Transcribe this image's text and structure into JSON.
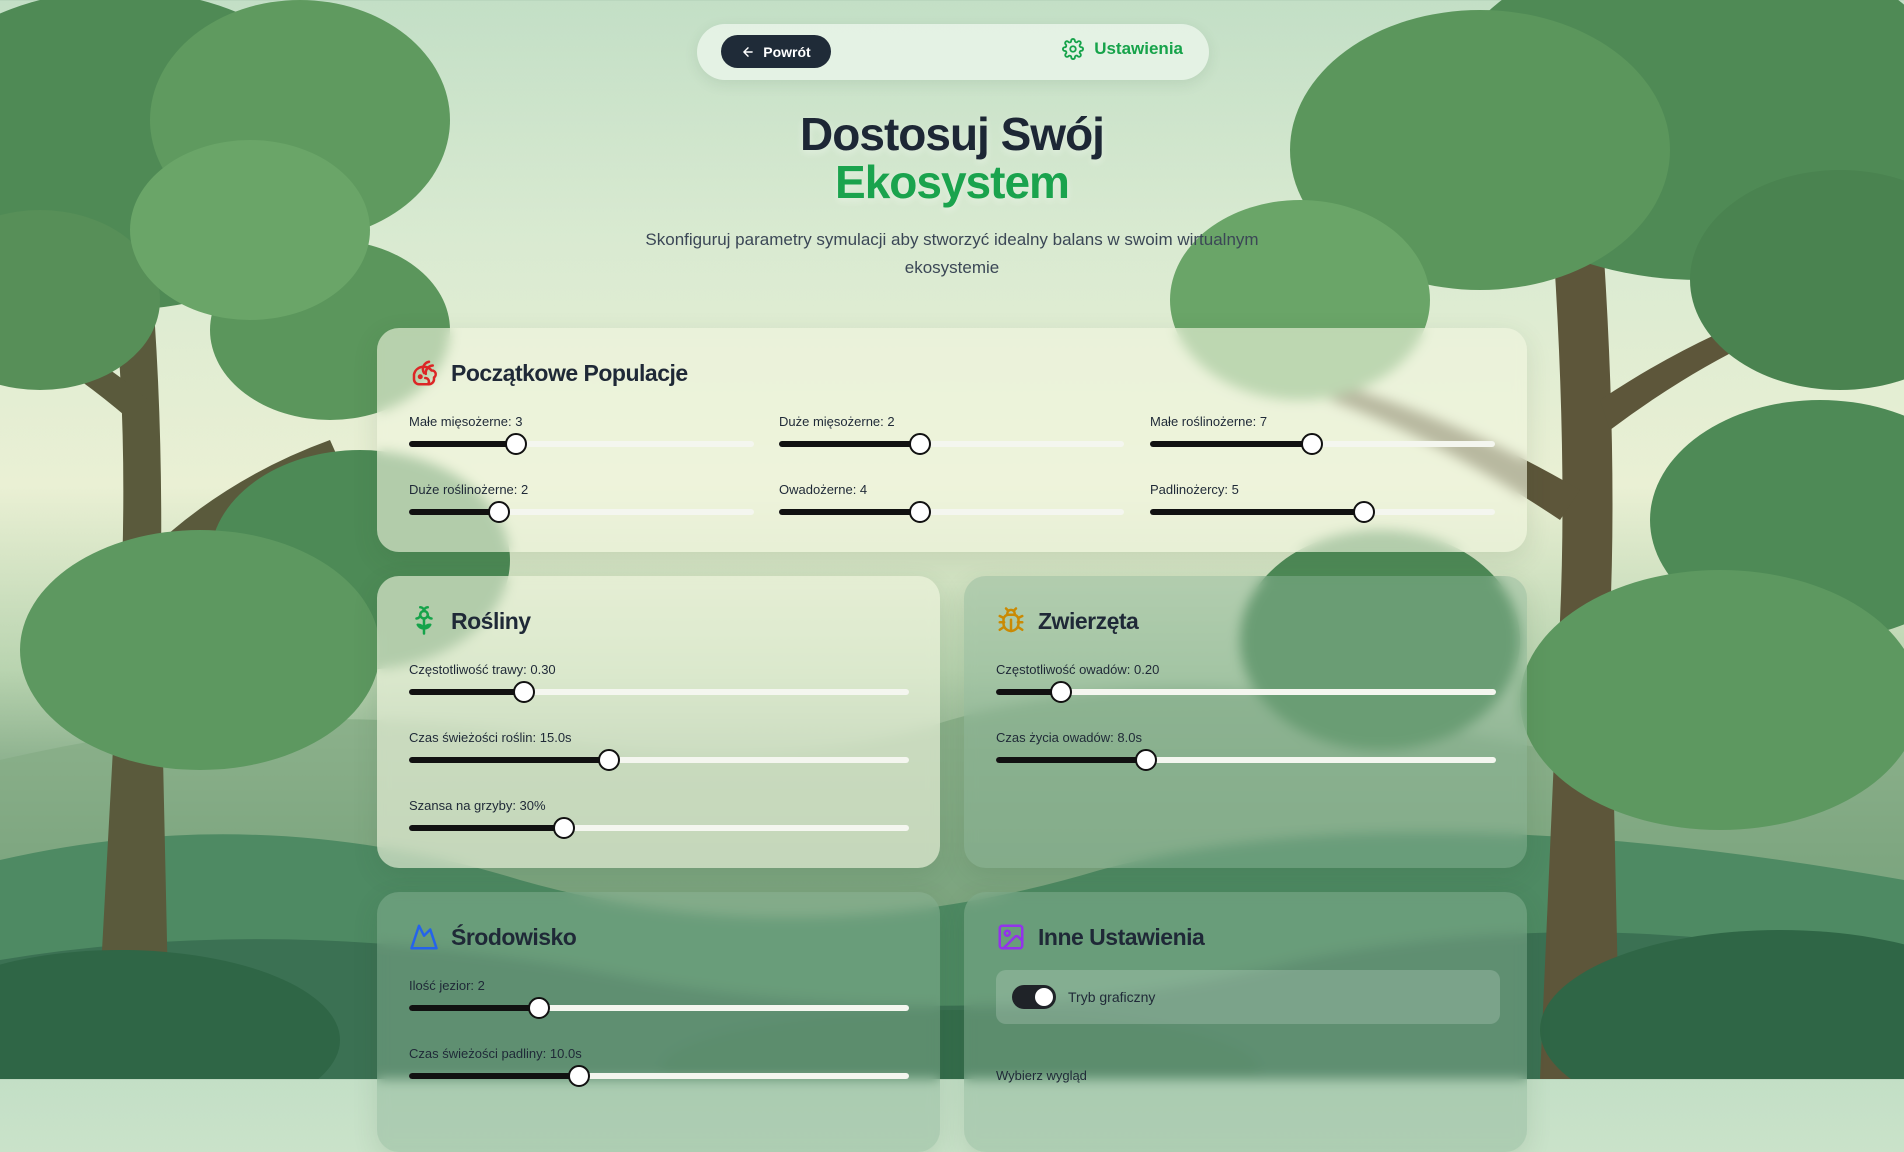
{
  "nav": {
    "back_label": "Powrót",
    "settings_label": "Ustawienia"
  },
  "hero": {
    "title_line1": "Dostosuj Swój",
    "title_line2": "Ekosystem",
    "subtitle": "Skonfiguruj parametry symulacji aby stworzyć idealny balans w swoim wirtualnym ekosystemie"
  },
  "populations": {
    "title": "Początkowe Populacje",
    "sliders": [
      {
        "label": "Małe mięsożerne: 3",
        "fraction": 0.31
      },
      {
        "label": "Duże mięsożerne: 2",
        "fraction": 0.41
      },
      {
        "label": "Małe roślinożerne: 7",
        "fraction": 0.47
      },
      {
        "label": "Duże roślinożerne: 2",
        "fraction": 0.26
      },
      {
        "label": "Owadożerne: 4",
        "fraction": 0.41
      },
      {
        "label": "Padlinożercy: 5",
        "fraction": 0.62
      }
    ]
  },
  "plants": {
    "title": "Rośliny",
    "sliders": [
      {
        "label": "Częstotliwość trawy: 0.30",
        "fraction": 0.23
      },
      {
        "label": "Czas świeżości roślin: 15.0s",
        "fraction": 0.4
      },
      {
        "label": "Szansa na grzyby: 30%",
        "fraction": 0.31
      }
    ]
  },
  "animals": {
    "title": "Zwierzęta",
    "sliders": [
      {
        "label": "Częstotliwość owadów: 0.20",
        "fraction": 0.13
      },
      {
        "label": "Czas życia owadów: 8.0s",
        "fraction": 0.3
      }
    ]
  },
  "environment": {
    "title": "Środowisko",
    "sliders": [
      {
        "label": "Ilość jezior: 2",
        "fraction": 0.26
      },
      {
        "label": "Czas świeżości padliny: 10.0s",
        "fraction": 0.34
      }
    ]
  },
  "other": {
    "title": "Inne Ustawienia",
    "toggle_label": "Tryb graficzny",
    "toggle_on": true,
    "cut_label": "Wybierz wygląd"
  },
  "colors": {
    "accent": "#1aa34d",
    "dark": "#1f2b38",
    "populations_icon": "#dc2626",
    "plants_icon": "#16a34a",
    "animals_icon": "#ca8a04",
    "environment_icon": "#2563eb",
    "other_icon": "#9333ea"
  },
  "icons": {
    "back": "arrow-left-icon",
    "settings": "gear-icon",
    "populations": "rabbit-icon",
    "plants": "flower-icon",
    "animals": "bug-icon",
    "environment": "mountain-icon",
    "other": "image-icon"
  }
}
